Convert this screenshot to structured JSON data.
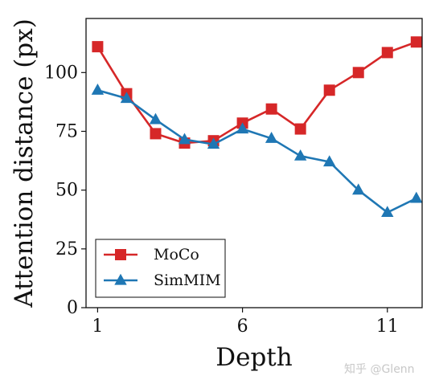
{
  "chart_data": {
    "type": "line",
    "xlabel": "Depth",
    "ylabel": "Attention distance (px)",
    "xlim": [
      0.6,
      12.2
    ],
    "ylim": [
      0,
      123
    ],
    "xticks": [
      1,
      6,
      11
    ],
    "yticks": [
      0,
      25,
      50,
      75,
      100
    ],
    "legend_position": "lower-left",
    "grid": false,
    "x": [
      1,
      2,
      3,
      4,
      5,
      6,
      7,
      8,
      9,
      10,
      11,
      12
    ],
    "series": [
      {
        "name": "MoCo",
        "color": "#d62728",
        "marker": "square",
        "values": [
          111,
          91,
          74,
          70,
          71,
          78.5,
          84.5,
          76,
          92.5,
          100,
          108.5,
          113
        ]
      },
      {
        "name": "SimMIM",
        "color": "#1f77b4",
        "marker": "triangle",
        "values": [
          92.5,
          89,
          80,
          71.5,
          69.5,
          76,
          72,
          64.5,
          62,
          50,
          40.5,
          46.5
        ]
      }
    ]
  },
  "watermark": "知乎 @Glenn"
}
